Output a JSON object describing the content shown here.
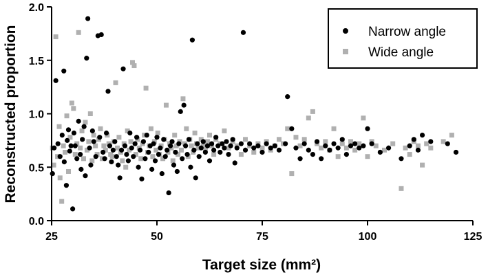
{
  "chart_data": {
    "type": "scatter",
    "xlabel": "Target size (mm²)",
    "ylabel": "Reconstructed proportion",
    "xlim": [
      25,
      125
    ],
    "ylim": [
      0,
      2.0
    ],
    "x_ticks": [
      "25",
      "50",
      "75",
      "100",
      "125"
    ],
    "y_ticks": [
      "0.0",
      "0.5",
      "1.0",
      "1.5",
      "2.0"
    ],
    "grid": false,
    "legend_position": "top-right",
    "series": [
      {
        "name": "Narrow angle",
        "marker": "circle",
        "color": "#000000",
        "points": [
          [
            25.2,
            0.44
          ],
          [
            25.6,
            0.68
          ],
          [
            26,
            1.31
          ],
          [
            26.5,
            0.72
          ],
          [
            27,
            0.6
          ],
          [
            27.5,
            0.8
          ],
          [
            27.9,
            1.4
          ],
          [
            28,
            0.55
          ],
          [
            28.5,
            0.33
          ],
          [
            28.7,
            0.75
          ],
          [
            29,
            0.85
          ],
          [
            29.3,
            0.65
          ],
          [
            29.6,
            0.7
          ],
          [
            30,
            0.11
          ],
          [
            30.3,
            0.82
          ],
          [
            30.6,
            0.7
          ],
          [
            31,
            0.58
          ],
          [
            31.4,
            0.93
          ],
          [
            31.8,
            0.62
          ],
          [
            32,
            0.48
          ],
          [
            32.3,
            0.76
          ],
          [
            32.7,
            0.88
          ],
          [
            33,
            0.42
          ],
          [
            33.3,
            1.52
          ],
          [
            33.6,
            1.89
          ],
          [
            34,
            0.68
          ],
          [
            34.3,
            0.52
          ],
          [
            34.7,
            0.84
          ],
          [
            35,
            0.74
          ],
          [
            35.5,
            0.6
          ],
          [
            36,
            1.73
          ],
          [
            36.4,
            0.78
          ],
          [
            36.8,
            1.74
          ],
          [
            37.2,
            0.64
          ],
          [
            37.6,
            0.58
          ],
          [
            38,
            0.82
          ],
          [
            38.4,
            1.21
          ],
          [
            38.8,
            0.7
          ],
          [
            39.2,
            0.55
          ],
          [
            39.6,
            0.66
          ],
          [
            40,
            0.74
          ],
          [
            40.4,
            0.6
          ],
          [
            40.8,
            0.52
          ],
          [
            41.2,
            0.4
          ],
          [
            41.6,
            0.66
          ],
          [
            42,
            1.42
          ],
          [
            42.4,
            0.7
          ],
          [
            42.8,
            0.62
          ],
          [
            43.2,
            0.56
          ],
          [
            43.6,
            0.82
          ],
          [
            44,
            0.68
          ],
          [
            44.4,
            0.6
          ],
          [
            44.8,
            0.72
          ],
          [
            45.2,
            0.78
          ],
          [
            45.6,
            0.5
          ],
          [
            46,
            0.66
          ],
          [
            46.4,
            0.39
          ],
          [
            46.8,
            0.74
          ],
          [
            47.2,
            0.58
          ],
          [
            47.6,
            0.8
          ],
          [
            48,
            0.64
          ],
          [
            48.4,
            0.7
          ],
          [
            48.8,
            0.48
          ],
          [
            49.2,
            0.72
          ],
          [
            49.6,
            0.56
          ],
          [
            50,
            0.78
          ],
          [
            50.4,
            0.62
          ],
          [
            50.8,
            0.68
          ],
          [
            51.2,
            0.44
          ],
          [
            51.6,
            0.76
          ],
          [
            52,
            0.6
          ],
          [
            52.4,
            0.66
          ],
          [
            52.8,
            0.26
          ],
          [
            53.2,
            0.7
          ],
          [
            53.6,
            0.74
          ],
          [
            54,
            0.52
          ],
          [
            54.4,
            0.64
          ],
          [
            54.8,
            0.46
          ],
          [
            55.2,
            0.72
          ],
          [
            55.6,
            1.02
          ],
          [
            56,
            0.58
          ],
          [
            56.4,
            1.08
          ],
          [
            56.8,
            0.7
          ],
          [
            57.2,
            0.62
          ],
          [
            57.6,
            0.76
          ],
          [
            58,
            0.5
          ],
          [
            58.4,
            1.69
          ],
          [
            58.8,
            0.66
          ],
          [
            59.2,
            0.4
          ],
          [
            59.6,
            0.72
          ],
          [
            60,
            0.6
          ],
          [
            60.5,
            0.68
          ],
          [
            61,
            0.74
          ],
          [
            61.5,
            0.64
          ],
          [
            62,
            0.7
          ],
          [
            62.5,
            0.56
          ],
          [
            63,
            0.72
          ],
          [
            63.5,
            0.66
          ],
          [
            64,
            0.78
          ],
          [
            64.5,
            0.7
          ],
          [
            65,
            0.64
          ],
          [
            65.5,
            0.72
          ],
          [
            66,
            0.68
          ],
          [
            66.5,
            0.74
          ],
          [
            67,
            0.62
          ],
          [
            67.5,
            0.7
          ],
          [
            68,
            0.76
          ],
          [
            68.5,
            0.54
          ],
          [
            69,
            0.68
          ],
          [
            70,
            0.72
          ],
          [
            70.5,
            1.76
          ],
          [
            71,
            0.66
          ],
          [
            72,
            0.72
          ],
          [
            73,
            0.68
          ],
          [
            74,
            0.7
          ],
          [
            75,
            0.64
          ],
          [
            76,
            0.72
          ],
          [
            77,
            0.68
          ],
          [
            78,
            0.7
          ],
          [
            79,
            0.66
          ],
          [
            80.5,
            0.72
          ],
          [
            81,
            1.16
          ],
          [
            82,
            0.86
          ],
          [
            83,
            0.68
          ],
          [
            84,
            0.58
          ],
          [
            85,
            0.72
          ],
          [
            86,
            0.66
          ],
          [
            87,
            0.62
          ],
          [
            88,
            0.74
          ],
          [
            89,
            0.58
          ],
          [
            90,
            0.7
          ],
          [
            91,
            0.66
          ],
          [
            92,
            0.72
          ],
          [
            93,
            0.68
          ],
          [
            94,
            0.76
          ],
          [
            95,
            0.62
          ],
          [
            96,
            0.7
          ],
          [
            97,
            0.72
          ],
          [
            98,
            0.68
          ],
          [
            99,
            0.7
          ],
          [
            100,
            0.86
          ],
          [
            101,
            0.72
          ],
          [
            103,
            0.64
          ],
          [
            105,
            0.68
          ],
          [
            108,
            0.58
          ],
          [
            110,
            0.7
          ],
          [
            111,
            0.76
          ],
          [
            112,
            0.66
          ],
          [
            113,
            0.8
          ],
          [
            115,
            0.74
          ],
          [
            119,
            0.72
          ],
          [
            121,
            0.64
          ]
        ]
      },
      {
        "name": "Wide angle",
        "marker": "square",
        "color": "#b0b0b0",
        "points": [
          [
            25.2,
            0.68
          ],
          [
            25.5,
            0.52
          ],
          [
            26,
            1.72
          ],
          [
            26.4,
            0.6
          ],
          [
            26.8,
            0.88
          ],
          [
            27,
            0.4
          ],
          [
            27.4,
            0.18
          ],
          [
            27.8,
            0.7
          ],
          [
            28.2,
            0.64
          ],
          [
            28.6,
            0.98
          ],
          [
            29,
            0.46
          ],
          [
            29.4,
            0.78
          ],
          [
            29.8,
            1.1
          ],
          [
            30.2,
            1.05
          ],
          [
            30.6,
            0.62
          ],
          [
            31,
            0.72
          ],
          [
            31.4,
            1.76
          ],
          [
            31.8,
            0.68
          ],
          [
            32.2,
            0.84
          ],
          [
            32.6,
            0.58
          ],
          [
            33,
            0.92
          ],
          [
            33.4,
            0.66
          ],
          [
            33.8,
            0.74
          ],
          [
            34.2,
            1.0
          ],
          [
            34.6,
            0.56
          ],
          [
            35,
            0.8
          ],
          [
            35.4,
            0.7
          ],
          [
            35.8,
            0.62
          ],
          [
            36.2,
            0.76
          ],
          [
            36.6,
            0.86
          ],
          [
            37,
            0.58
          ],
          [
            37.4,
            0.7
          ],
          [
            37.8,
            0.66
          ],
          [
            38.2,
            0.8
          ],
          [
            38.6,
            0.72
          ],
          [
            39,
            0.62
          ],
          [
            39.4,
            0.6
          ],
          [
            39.8,
            0.74
          ],
          [
            40.2,
            1.29
          ],
          [
            40.6,
            0.68
          ],
          [
            41,
            0.78
          ],
          [
            41.4,
            0.64
          ],
          [
            41.8,
            0.56
          ],
          [
            42.2,
            0.72
          ],
          [
            42.6,
            0.5
          ],
          [
            43,
            0.84
          ],
          [
            43.4,
            0.66
          ],
          [
            43.8,
            0.74
          ],
          [
            44.2,
            1.48
          ],
          [
            44.6,
            1.45
          ],
          [
            45,
            0.62
          ],
          [
            45.4,
            0.76
          ],
          [
            45.8,
            0.68
          ],
          [
            46.2,
            0.58
          ],
          [
            46.6,
            0.72
          ],
          [
            47,
            0.8
          ],
          [
            47.4,
            1.24
          ],
          [
            47.8,
            0.64
          ],
          [
            48.2,
            0.7
          ],
          [
            48.6,
            0.86
          ],
          [
            49,
            0.6
          ],
          [
            49.4,
            0.74
          ],
          [
            49.8,
            0.66
          ],
          [
            50.2,
            0.82
          ],
          [
            50.6,
            0.62
          ],
          [
            51,
            0.7
          ],
          [
            51.4,
            0.58
          ],
          [
            51.8,
            0.76
          ],
          [
            52.2,
            1.08
          ],
          [
            52.6,
            0.64
          ],
          [
            53,
            0.72
          ],
          [
            53.4,
            0.68
          ],
          [
            53.8,
            0.56
          ],
          [
            54.2,
            0.8
          ],
          [
            54.6,
            0.7
          ],
          [
            55,
            0.62
          ],
          [
            55.4,
            0.74
          ],
          [
            55.8,
            0.66
          ],
          [
            56.2,
            1.14
          ],
          [
            56.6,
            0.72
          ],
          [
            57,
            0.86
          ],
          [
            57.4,
            0.6
          ],
          [
            57.8,
            0.76
          ],
          [
            58.2,
            0.7
          ],
          [
            58.6,
            0.64
          ],
          [
            59,
            0.82
          ],
          [
            59.4,
            0.72
          ],
          [
            59.8,
            0.68
          ],
          [
            60.5,
            0.76
          ],
          [
            61,
            0.7
          ],
          [
            61.5,
            0.66
          ],
          [
            62,
            0.74
          ],
          [
            62.5,
            0.8
          ],
          [
            63,
            0.7
          ],
          [
            63.5,
            0.62
          ],
          [
            64,
            0.76
          ],
          [
            65,
            0.72
          ],
          [
            66,
            0.84
          ],
          [
            67,
            0.68
          ],
          [
            68,
            0.74
          ],
          [
            69,
            0.7
          ],
          [
            70,
            0.62
          ],
          [
            71,
            0.76
          ],
          [
            72,
            0.7
          ],
          [
            73,
            0.64
          ],
          [
            74,
            0.72
          ],
          [
            75,
            0.68
          ],
          [
            76,
            0.74
          ],
          [
            77,
            0.66
          ],
          [
            78,
            0.7
          ],
          [
            79,
            0.76
          ],
          [
            80,
            0.72
          ],
          [
            81,
            0.86
          ],
          [
            82,
            0.44
          ],
          [
            83,
            0.78
          ],
          [
            84,
            0.7
          ],
          [
            85,
            0.76
          ],
          [
            86,
            0.96
          ],
          [
            87,
            1.02
          ],
          [
            88,
            0.72
          ],
          [
            89,
            0.68
          ],
          [
            90,
            0.74
          ],
          [
            91,
            0.66
          ],
          [
            92,
            0.86
          ],
          [
            93,
            0.6
          ],
          [
            94,
            0.72
          ],
          [
            95,
            0.68
          ],
          [
            96,
            0.74
          ],
          [
            97,
            0.66
          ],
          [
            98,
            0.72
          ],
          [
            99,
            0.96
          ],
          [
            100,
            0.6
          ],
          [
            101,
            0.74
          ],
          [
            102,
            0.7
          ],
          [
            104,
            0.66
          ],
          [
            106,
            0.72
          ],
          [
            108,
            0.3
          ],
          [
            109,
            0.68
          ],
          [
            110,
            0.62
          ],
          [
            111,
            0.74
          ],
          [
            112,
            0.7
          ],
          [
            113,
            0.52
          ],
          [
            114,
            0.72
          ],
          [
            115,
            0.68
          ],
          [
            118,
            0.74
          ],
          [
            120,
            0.8
          ]
        ]
      }
    ]
  }
}
